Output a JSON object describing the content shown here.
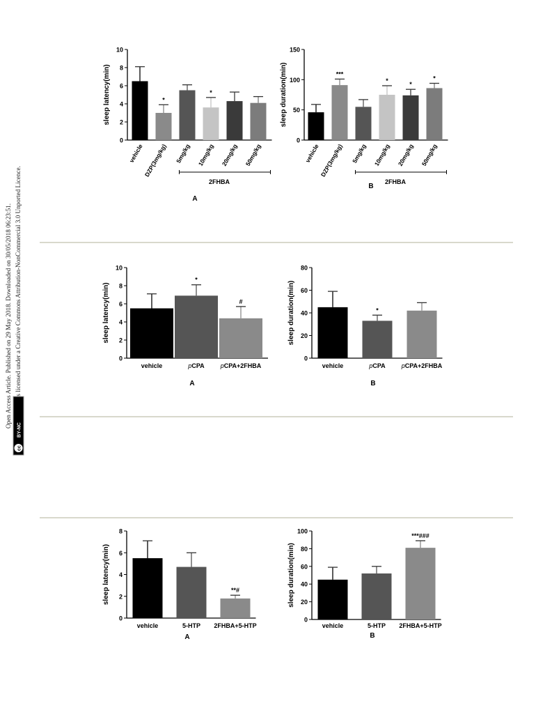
{
  "side_note": {
    "line1": "Open Access Article. Published on 29 May 2018. Downloaded on 30/05/2018 06:23:51.",
    "line2": "This article is licensed under a Creative Commons Attribution-NonCommercial 3.0 Unported Licence.",
    "badge_cc": "cc",
    "badge_label": "BY-NC"
  },
  "chart_data": [
    {
      "type": "bar",
      "panel_label": "A",
      "ylabel": "sleep latency(min)",
      "ylim": [
        0,
        10
      ],
      "yticks": [
        0,
        2,
        4,
        6,
        8,
        10
      ],
      "categories": [
        "vehicle",
        "DZP(3mg/kg)",
        "5mg/kg",
        "10mg/kg",
        "20mg/kg",
        "50mg/kg"
      ],
      "values": [
        6.5,
        3.0,
        5.5,
        3.6,
        4.3,
        4.1
      ],
      "errors": [
        1.6,
        0.9,
        0.6,
        1.1,
        1.0,
        0.7
      ],
      "annotations": [
        "",
        "*",
        "",
        "*",
        "",
        ""
      ],
      "colors": [
        "#000000",
        "#8a8a8a",
        "#555555",
        "#c4c4c4",
        "#3a3a3a",
        "#7c7c7c"
      ],
      "group_label": "2FHBA",
      "group_range": [
        2,
        5
      ],
      "rotated_labels": true
    },
    {
      "type": "bar",
      "panel_label": "B",
      "ylabel": "sleep duration(min)",
      "ylim": [
        0,
        150
      ],
      "yticks": [
        0,
        50,
        100,
        150
      ],
      "categories": [
        "vehicle",
        "DZP(3mg/kg)",
        "5mg/kg",
        "10mg/kg",
        "20mg/kg",
        "50mg/kg"
      ],
      "values": [
        46,
        91,
        55,
        75,
        74,
        86
      ],
      "errors": [
        13,
        10,
        12,
        15,
        10,
        8
      ],
      "annotations": [
        "",
        "***",
        "",
        "*",
        "*",
        "*"
      ],
      "colors": [
        "#000000",
        "#8a8a8a",
        "#555555",
        "#c4c4c4",
        "#3a3a3a",
        "#7c7c7c"
      ],
      "group_label": "2FHBA",
      "group_range": [
        2,
        5
      ],
      "rotated_labels": true
    },
    {
      "type": "bar",
      "panel_label": "A",
      "ylabel": "sleep latency(min)",
      "ylim": [
        0,
        10
      ],
      "yticks": [
        0,
        2,
        4,
        6,
        8,
        10
      ],
      "categories": [
        "vehicle",
        "pCPA",
        "pCPA+2FHBA"
      ],
      "values": [
        5.5,
        6.9,
        4.4
      ],
      "errors": [
        1.6,
        1.2,
        1.3
      ],
      "annotations": [
        "",
        "*",
        "#"
      ],
      "colors": [
        "#000000",
        "#555555",
        "#8a8a8a"
      ],
      "rotated_labels": false
    },
    {
      "type": "bar",
      "panel_label": "B",
      "ylabel": "sleep duration(min)",
      "ylim": [
        0,
        80
      ],
      "yticks": [
        0,
        20,
        40,
        60,
        80
      ],
      "categories": [
        "vehicle",
        "pCPA",
        "pCPA+2FHBA"
      ],
      "values": [
        45,
        33,
        42
      ],
      "errors": [
        14,
        5,
        7
      ],
      "annotations": [
        "",
        "*",
        ""
      ],
      "colors": [
        "#000000",
        "#555555",
        "#8a8a8a"
      ],
      "rotated_labels": false
    },
    {
      "type": "bar",
      "panel_label": "A",
      "ylabel": "sleep latency(min)",
      "ylim": [
        0,
        8
      ],
      "yticks": [
        0,
        2,
        4,
        6,
        8
      ],
      "categories": [
        "vehicle",
        "5-HTP",
        "2FHBA+5-HTP"
      ],
      "values": [
        5.5,
        4.7,
        1.8
      ],
      "errors": [
        1.6,
        1.3,
        0.3
      ],
      "annotations": [
        "",
        "",
        "**#"
      ],
      "colors": [
        "#000000",
        "#555555",
        "#8a8a8a"
      ],
      "rotated_labels": false
    },
    {
      "type": "bar",
      "panel_label": "B",
      "ylabel": "sleep duration(min)",
      "ylim": [
        0,
        100
      ],
      "yticks": [
        0,
        20,
        40,
        60,
        80,
        100
      ],
      "categories": [
        "vehicle",
        "5-HTP",
        "2FHBA+5-HTP"
      ],
      "values": [
        45,
        52,
        81
      ],
      "errors": [
        14,
        8,
        8
      ],
      "annotations": [
        "",
        "",
        "***###"
      ],
      "colors": [
        "#000000",
        "#555555",
        "#8a8a8a"
      ],
      "rotated_labels": false
    }
  ]
}
